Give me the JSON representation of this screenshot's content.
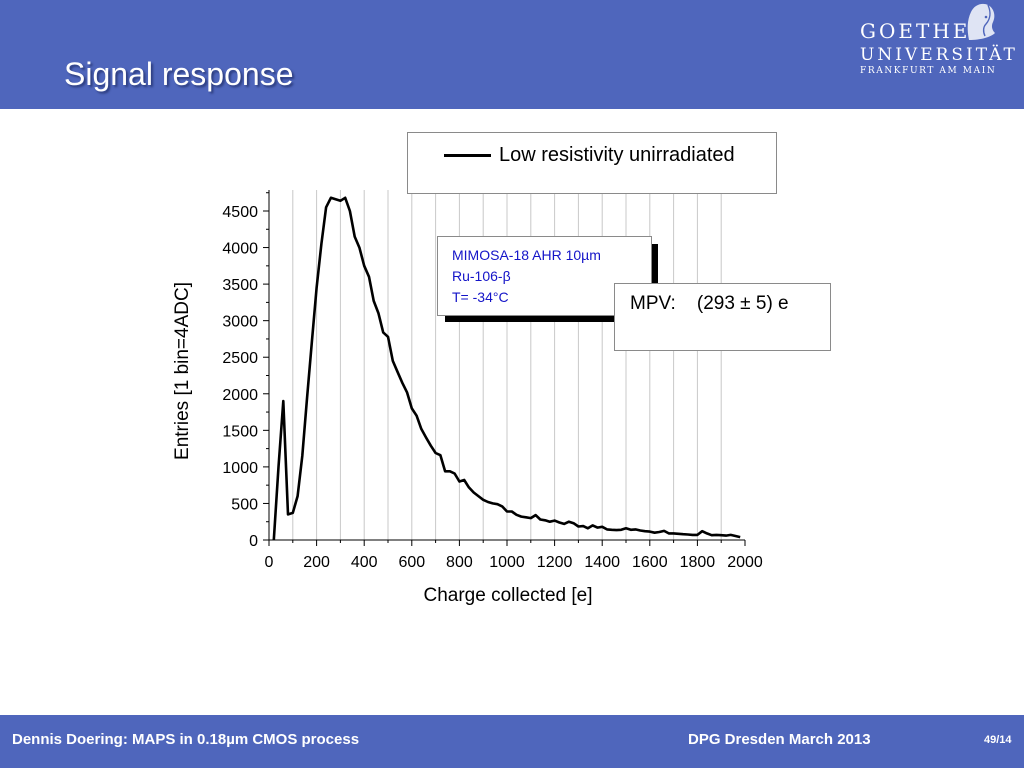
{
  "slide": {
    "title": "Signal response",
    "logo": {
      "line1": "GOETHE",
      "line2": "UNIVERSITÄT",
      "line3": "FRANKFURT AM MAIN"
    }
  },
  "footer": {
    "left": "Dennis Doering: MAPS in 0.18µm CMOS process",
    "right": "DPG Dresden March 2013",
    "page": "49/14"
  },
  "info_box": {
    "line1": "MIMOSA-18 AHR 10µm",
    "line2": "Ru-106-β",
    "line3": "T= -34°C"
  },
  "mpv_box": {
    "label": "MPV:",
    "value": "(293 ± 5) e"
  },
  "chart_data": {
    "type": "line",
    "title": "",
    "xlabel": "Charge collected [e]",
    "ylabel": "Entries [1 bin=4ADC]",
    "xlim": [
      0,
      2000
    ],
    "ylim": [
      0,
      4800
    ],
    "xticks": [
      0,
      200,
      400,
      600,
      800,
      1000,
      1200,
      1400,
      1600,
      1800,
      2000
    ],
    "yticks": [
      0,
      500,
      1000,
      1500,
      2000,
      2500,
      3000,
      3500,
      4000,
      4500
    ],
    "grid": "vertical",
    "legend": "top-right",
    "series": [
      {
        "name": "Low resistivity unirradiated",
        "color": "#000000",
        "x": [
          20,
          40,
          60,
          80,
          100,
          120,
          140,
          160,
          180,
          200,
          220,
          240,
          260,
          280,
          300,
          320,
          340,
          360,
          380,
          400,
          420,
          440,
          460,
          480,
          500,
          520,
          540,
          560,
          580,
          600,
          620,
          640,
          660,
          680,
          700,
          720,
          740,
          760,
          780,
          800,
          820,
          840,
          860,
          880,
          900,
          920,
          940,
          960,
          980,
          1000,
          1020,
          1040,
          1060,
          1080,
          1100,
          1120,
          1140,
          1160,
          1180,
          1200,
          1220,
          1240,
          1260,
          1280,
          1300,
          1320,
          1340,
          1360,
          1380,
          1400,
          1420,
          1440,
          1460,
          1480,
          1500,
          1520,
          1540,
          1560,
          1580,
          1600,
          1620,
          1640,
          1660,
          1680,
          1700,
          1720,
          1740,
          1760,
          1780,
          1800,
          1820,
          1840,
          1860,
          1880,
          1900,
          1920,
          1940,
          1960,
          1980
        ],
        "y": [
          0,
          1000,
          1900,
          350,
          370,
          600,
          1150,
          1950,
          2700,
          3450,
          4050,
          4550,
          4680,
          4660,
          4640,
          4680,
          4500,
          4150,
          4000,
          3750,
          3600,
          3270,
          3100,
          2840,
          2780,
          2450,
          2300,
          2150,
          2020,
          1800,
          1700,
          1520,
          1400,
          1290,
          1190,
          1160,
          940,
          940,
          910,
          800,
          820,
          720,
          650,
          600,
          550,
          520,
          500,
          490,
          460,
          390,
          390,
          345,
          320,
          310,
          300,
          340,
          280,
          270,
          250,
          265,
          240,
          220,
          250,
          230,
          185,
          190,
          160,
          200,
          170,
          180,
          145,
          140,
          135,
          140,
          160,
          140,
          145,
          130,
          120,
          115,
          100,
          110,
          125,
          90,
          90,
          85,
          80,
          75,
          70,
          70,
          120,
          90,
          65,
          70,
          65,
          60,
          70,
          55,
          40
        ]
      }
    ]
  }
}
